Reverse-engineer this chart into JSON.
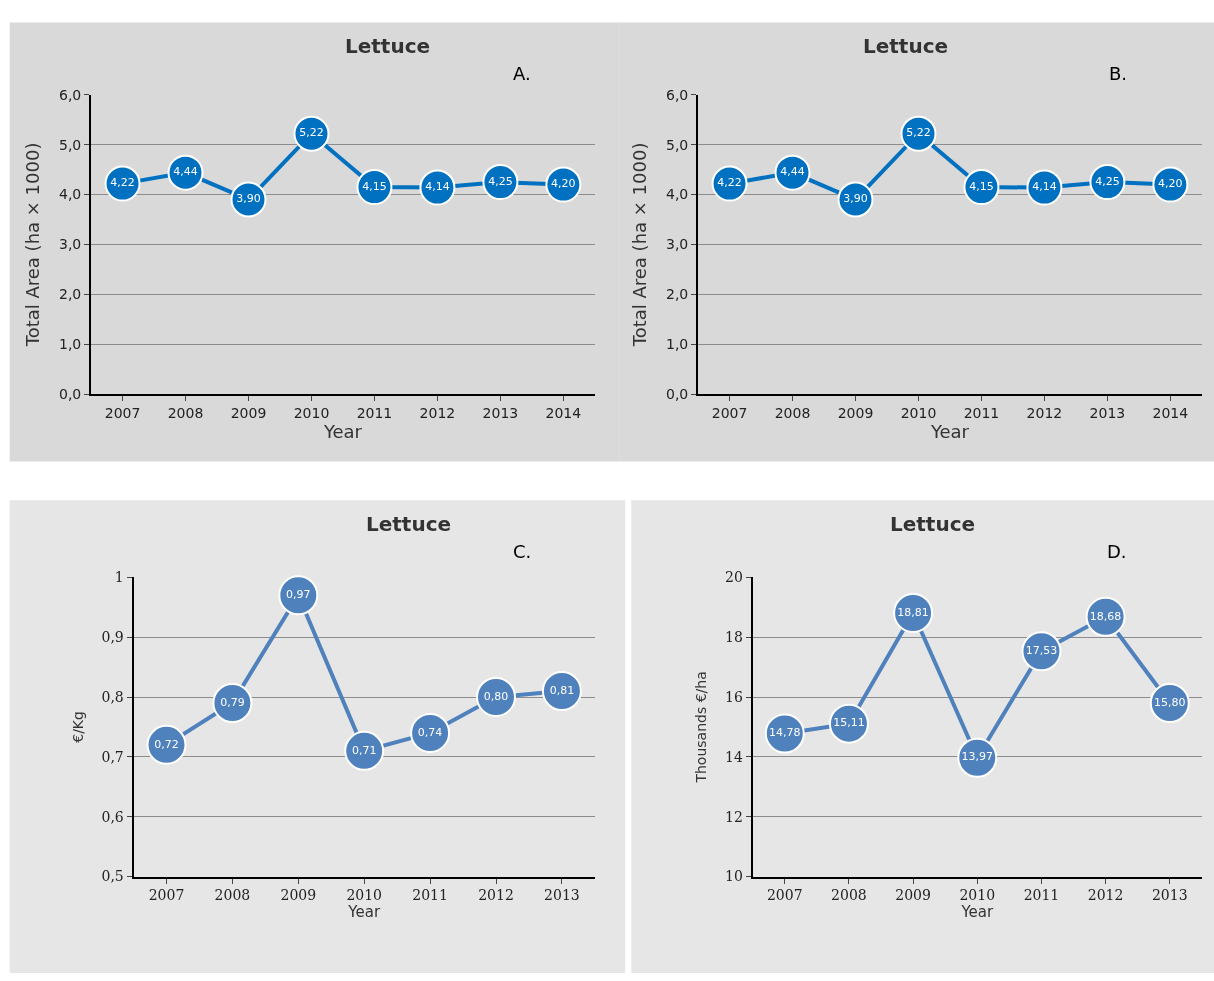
{
  "chart_data": [
    {
      "type": "line",
      "title": "Lettuce",
      "xlabel": "Year",
      "ylabel": "Total Area (ha × 1000)",
      "annotations": [
        "A."
      ],
      "categories": [
        "2007",
        "2008",
        "2009",
        "2010",
        "2011",
        "2012",
        "2013",
        "2014"
      ],
      "series": [
        {
          "color": "#0070c0",
          "values": [
            4.22,
            4.44,
            3.9,
            5.22,
            4.15,
            4.14,
            4.25,
            4.2
          ],
          "value_labels": [
            "4,22",
            "4,44",
            "3,90",
            "5,22",
            "4,15",
            "4,14",
            "4,25",
            "4,20"
          ]
        }
      ],
      "ylim": [
        0,
        6
      ],
      "yticks": [
        {
          "value": 0,
          "label": "0,0"
        },
        {
          "value": 1,
          "label": "1,0"
        },
        {
          "value": 2,
          "label": "2,0"
        },
        {
          "value": 3,
          "label": "3,0"
        },
        {
          "value": 4,
          "label": "4,0"
        },
        {
          "value": 5,
          "label": "5,0"
        },
        {
          "value": 6,
          "label": "6,0"
        }
      ],
      "grid": "y",
      "marker": "circle",
      "line_style": "solid"
    },
    {
      "type": "line",
      "title": "Lettuce",
      "xlabel": "Year",
      "ylabel": "Total Area (ha × 1000)",
      "annotations": [
        "B."
      ],
      "categories": [
        "2007",
        "2008",
        "2009",
        "2010",
        "2011",
        "2012",
        "2013",
        "2014"
      ],
      "series": [
        {
          "color": "#0070c0",
          "values": [
            4.22,
            4.44,
            3.9,
            5.22,
            4.15,
            4.14,
            4.25,
            4.2
          ],
          "value_labels": [
            "4,22",
            "4,44",
            "3,90",
            "5,22",
            "4,15",
            "4,14",
            "4,25",
            "4,20"
          ]
        }
      ],
      "ylim": [
        0,
        6
      ],
      "yticks": [
        {
          "value": 0,
          "label": "0,0"
        },
        {
          "value": 1,
          "label": "1,0"
        },
        {
          "value": 2,
          "label": "2,0"
        },
        {
          "value": 3,
          "label": "3,0"
        },
        {
          "value": 4,
          "label": "4,0"
        },
        {
          "value": 5,
          "label": "5,0"
        },
        {
          "value": 6,
          "label": "6,0"
        }
      ],
      "grid": "y",
      "marker": "circle",
      "line_style": "solid"
    },
    {
      "type": "line",
      "title": "Lettuce",
      "xlabel": "Year",
      "ylabel": "€/Kg",
      "annotations": [
        "C."
      ],
      "categories": [
        "2007",
        "2008",
        "2009",
        "2010",
        "2011",
        "2012",
        "2013"
      ],
      "series": [
        {
          "color": "#4f81bd",
          "values": [
            0.72,
            0.79,
            0.97,
            0.71,
            0.74,
            0.8,
            0.81
          ],
          "value_labels": [
            "0,72",
            "0,79",
            "0,97",
            "0,71",
            "0,74",
            "0,80",
            "0,81"
          ]
        }
      ],
      "ylim": [
        0.5,
        1.0
      ],
      "yticks": [
        {
          "value": 0.5,
          "label": "0,5"
        },
        {
          "value": 0.6,
          "label": "0,6"
        },
        {
          "value": 0.7,
          "label": "0,7"
        },
        {
          "value": 0.8,
          "label": "0,8"
        },
        {
          "value": 0.9,
          "label": "0,9"
        },
        1
      ],
      "grid": "y",
      "marker": "circle",
      "line_style": "solid"
    },
    {
      "type": "line",
      "title": "Lettuce",
      "xlabel": "Year",
      "ylabel": "Thousands €/ha",
      "annotations": [
        "D."
      ],
      "categories": [
        "2007",
        "2008",
        "2009",
        "2010",
        "2011",
        "2012",
        "2013"
      ],
      "series": [
        {
          "color": "#4f81bd",
          "values": [
            14.78,
            15.11,
            18.81,
            13.97,
            17.53,
            18.68,
            15.8
          ],
          "value_labels": [
            "14,78",
            "15,11",
            "18,81",
            "13,97",
            "17,53",
            "18,68",
            "15,80"
          ]
        }
      ],
      "ylim": [
        10,
        20
      ],
      "yticks": [
        10,
        12,
        14,
        16,
        18,
        20
      ],
      "grid": "y",
      "marker": "circle",
      "line_style": "solid"
    }
  ]
}
